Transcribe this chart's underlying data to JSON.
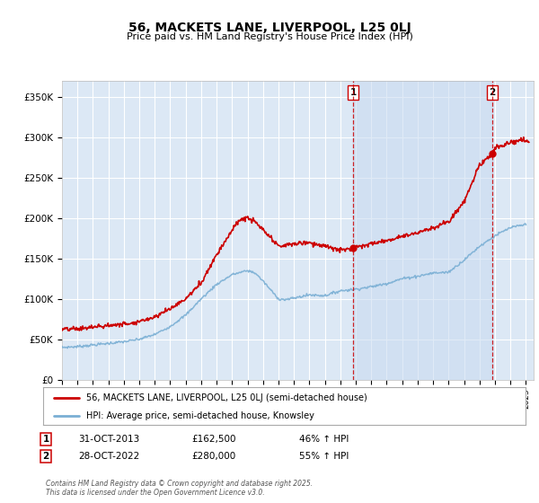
{
  "title": "56, MACKETS LANE, LIVERPOOL, L25 0LJ",
  "subtitle": "Price paid vs. HM Land Registry's House Price Index (HPI)",
  "background_color": "#ffffff",
  "plot_bg_color": "#dce8f5",
  "grid_color": "#ffffff",
  "red_line_color": "#cc0000",
  "blue_line_color": "#7aafd4",
  "ann_line_color": "#cc0000",
  "shade_color": "#c8daf0",
  "ylim": [
    0,
    370000
  ],
  "yticks": [
    0,
    50000,
    100000,
    150000,
    200000,
    250000,
    300000,
    350000
  ],
  "ytick_labels": [
    "£0",
    "£50K",
    "£100K",
    "£150K",
    "£200K",
    "£250K",
    "£300K",
    "£350K"
  ],
  "legend_label1": "56, MACKETS LANE, LIVERPOOL, L25 0LJ (semi-detached house)",
  "legend_label2": "HPI: Average price, semi-detached house, Knowsley",
  "ann1_label": "1",
  "ann1_date": "31-OCT-2013",
  "ann1_price": "£162,500",
  "ann1_hpi": "46% ↑ HPI",
  "ann2_label": "2",
  "ann2_date": "28-OCT-2022",
  "ann2_price": "£280,000",
  "ann2_hpi": "55% ↑ HPI",
  "footer": "Contains HM Land Registry data © Crown copyright and database right 2025.\nThis data is licensed under the Open Government Licence v3.0.",
  "ann1_x": 2013.83,
  "ann1_y": 162500,
  "ann2_x": 2022.83,
  "ann2_y": 280000,
  "xmin": 1995,
  "xmax": 2025.5
}
